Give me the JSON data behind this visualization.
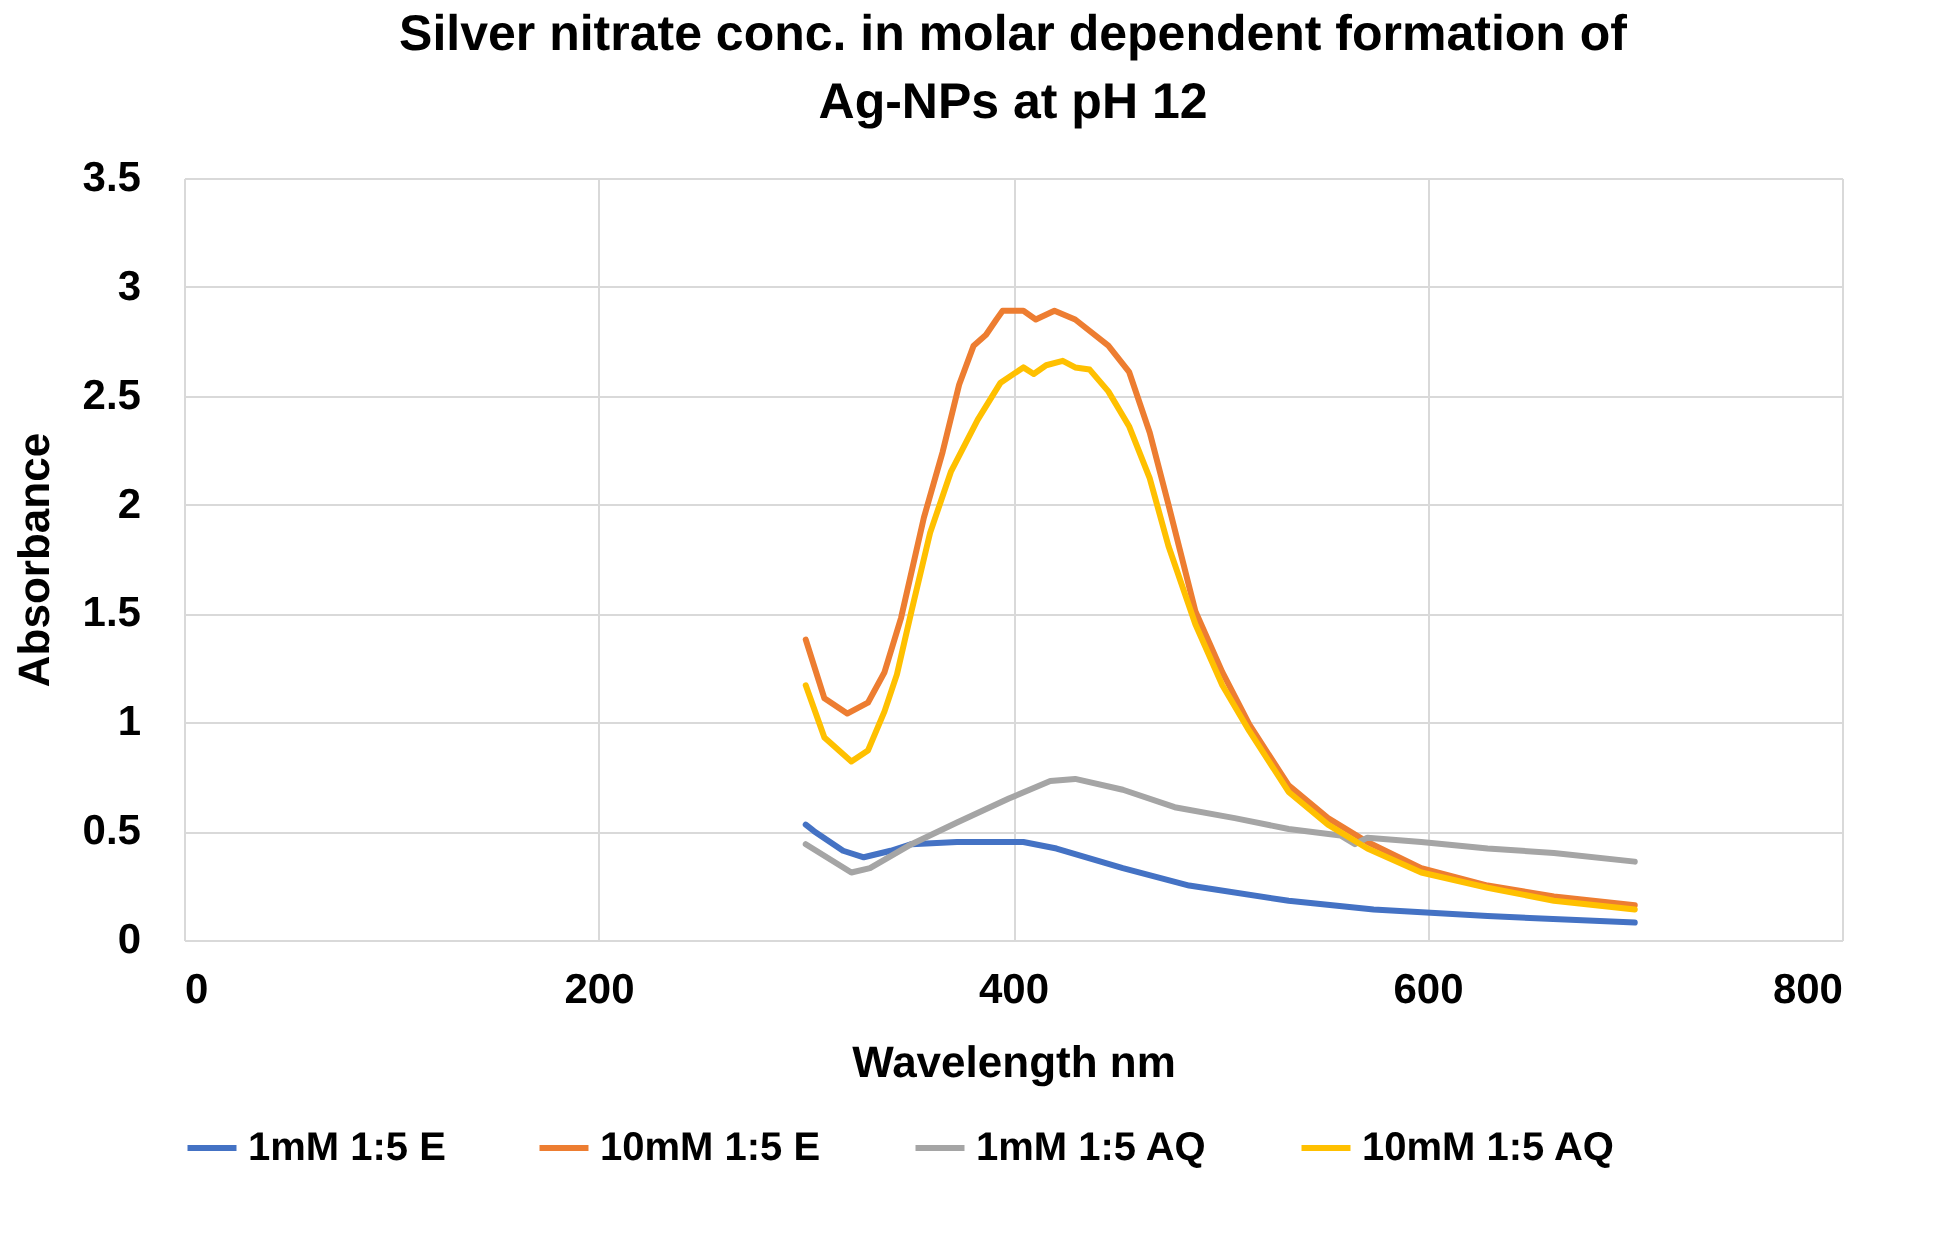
{
  "chart_data": {
    "type": "line",
    "title": "Silver nitrate conc. in molar dependent formation of Ag-NPs at pH 12",
    "xlabel": "Wavelength nm",
    "ylabel": "Absorbance",
    "xlim": [
      0,
      800
    ],
    "xticks": [
      0,
      200,
      400,
      600,
      800
    ],
    "ylim": [
      0,
      3.5
    ],
    "yticks": [
      0,
      0.5,
      1,
      1.5,
      2,
      2.5,
      3,
      3.5
    ],
    "grid": true,
    "legend": "bottom",
    "line_style": "solid",
    "series": [
      {
        "name": "1mM 1:5 E",
        "color": "#4472c4",
        "x": [
          300,
          304,
          318,
          328,
          341,
          351,
          373,
          405,
          421,
          453,
          485,
          533,
          574,
          629,
          700
        ],
        "values": [
          0.53,
          0.5,
          0.41,
          0.38,
          0.41,
          0.44,
          0.45,
          0.45,
          0.42,
          0.33,
          0.25,
          0.18,
          0.14,
          0.11,
          0.08
        ]
      },
      {
        "name": "10mM 1:5 E",
        "color": "#ed7d31",
        "x": [
          300,
          309,
          320,
          330,
          338,
          346,
          357,
          366,
          374,
          381,
          387,
          392,
          395,
          405,
          411,
          420,
          430,
          446,
          456,
          466,
          475,
          488,
          501,
          514,
          533,
          552,
          571,
          597,
          629,
          661,
          700
        ],
        "values": [
          1.38,
          1.11,
          1.04,
          1.09,
          1.23,
          1.48,
          1.94,
          2.24,
          2.55,
          2.73,
          2.78,
          2.85,
          2.89,
          2.89,
          2.85,
          2.89,
          2.85,
          2.73,
          2.61,
          2.33,
          2.0,
          1.51,
          1.23,
          0.99,
          0.71,
          0.56,
          0.45,
          0.33,
          0.25,
          0.2,
          0.16
        ]
      },
      {
        "name": "1mM 1:5 AQ",
        "color": "#a5a5a5",
        "x": [
          300,
          322,
          331,
          351,
          373,
          398,
          418,
          430,
          453,
          478,
          507,
          533,
          558,
          565,
          571,
          597,
          629,
          661,
          700
        ],
        "values": [
          0.44,
          0.31,
          0.33,
          0.44,
          0.54,
          0.65,
          0.73,
          0.74,
          0.69,
          0.61,
          0.56,
          0.51,
          0.48,
          0.44,
          0.47,
          0.45,
          0.42,
          0.4,
          0.36
        ]
      },
      {
        "name": "10mM 1:5 AQ",
        "color": "#ffc000",
        "x": [
          300,
          309,
          322,
          330,
          338,
          344,
          351,
          360,
          370,
          383,
          394,
          405,
          410,
          416,
          424,
          430,
          437,
          446,
          456,
          466,
          475,
          488,
          501,
          514,
          533,
          552,
          571,
          597,
          629,
          661,
          700
        ],
        "values": [
          1.17,
          0.93,
          0.82,
          0.87,
          1.05,
          1.22,
          1.51,
          1.87,
          2.15,
          2.39,
          2.56,
          2.63,
          2.6,
          2.64,
          2.66,
          2.63,
          2.62,
          2.52,
          2.36,
          2.12,
          1.81,
          1.45,
          1.17,
          0.96,
          0.68,
          0.53,
          0.42,
          0.31,
          0.24,
          0.18,
          0.14
        ]
      }
    ]
  }
}
